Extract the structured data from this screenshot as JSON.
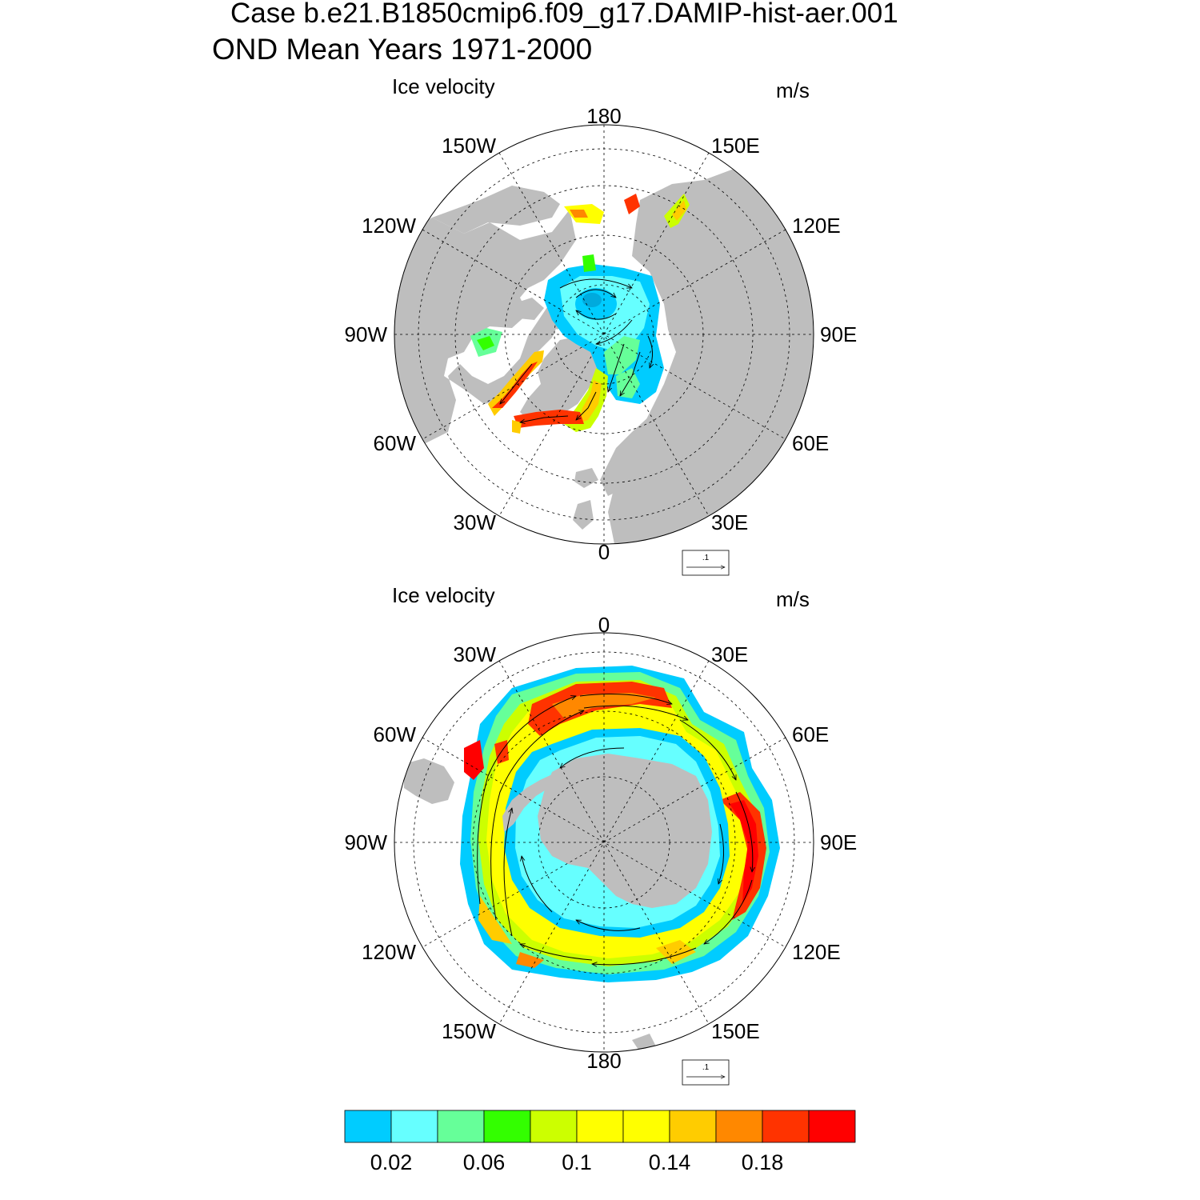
{
  "title": {
    "line1": "Case b.e21.B1850cmip6.f09_g17.DAMIP-hist-aer.001",
    "line2": "OND Mean   Years 1971-2000"
  },
  "panels": [
    {
      "id": "arctic",
      "hemisphere": "north",
      "variable_label": "Ice velocity",
      "units": "m/s",
      "lon_labels": [
        "180",
        "150E",
        "120E",
        "90E",
        "60E",
        "30E",
        "0",
        "30W",
        "60W",
        "90W",
        "120W",
        "150W"
      ],
      "reference_vector_label": ".1"
    },
    {
      "id": "antarctic",
      "hemisphere": "south",
      "variable_label": "Ice velocity",
      "units": "m/s",
      "lon_labels": [
        "0",
        "30E",
        "60E",
        "90E",
        "120E",
        "150E",
        "180",
        "150W",
        "120W",
        "90W",
        "60W",
        "30W"
      ],
      "reference_vector_label": ".1"
    }
  ],
  "colorbar": {
    "colors": [
      "#00ccff",
      "#66ffff",
      "#66ff99",
      "#33ff00",
      "#ccff00",
      "#ffff00",
      "#ffff00",
      "#ffcc00",
      "#ff8800",
      "#ff3300",
      "#ff0000"
    ],
    "tick_labels": [
      "0.02",
      "0.06",
      "0.1",
      "0.14",
      "0.18"
    ]
  },
  "land_color": "#bebebe"
}
